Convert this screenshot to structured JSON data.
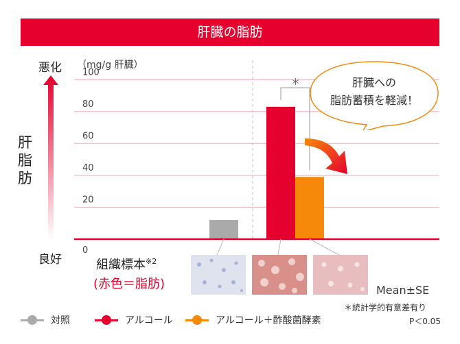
{
  "title": "肝臓の脂肪",
  "y_unit": "（mg/g 肝臓）",
  "axis_top_label": "悪化",
  "axis_bottom_label": "良好",
  "axis_side_label": [
    "肝",
    "脂",
    "肪"
  ],
  "callout": {
    "line1": "肝臓への",
    "line2": "脂肪蓄積を軽減！"
  },
  "significance_mark": "＊",
  "tissue_label": "組織標本",
  "tissue_note": "※2",
  "tissue_sub": "(赤色＝脂肪)",
  "stat_label": "Mean±SE",
  "footnote_sig": "＊統計学的有意差有り",
  "footnote_p": "P＜0.05",
  "colors": {
    "control": "#aaaaaa",
    "alcohol": "#e5002d",
    "treated": "#f7890a",
    "grid": "#f3c3cc",
    "title_bg": "#e5002d"
  },
  "chart_data": {
    "type": "bar",
    "categories": [
      "対照",
      "アルコール",
      "アルコール＋酢酸菌酵素"
    ],
    "values": [
      12,
      83,
      39
    ],
    "ylim": [
      0,
      110
    ],
    "yticks": [
      0,
      20,
      40,
      60,
      80,
      100
    ],
    "grid": true,
    "legend": "bottom",
    "legend_entries": [
      "対照",
      "アルコール",
      "アルコール＋酢酸菌酵素"
    ]
  }
}
